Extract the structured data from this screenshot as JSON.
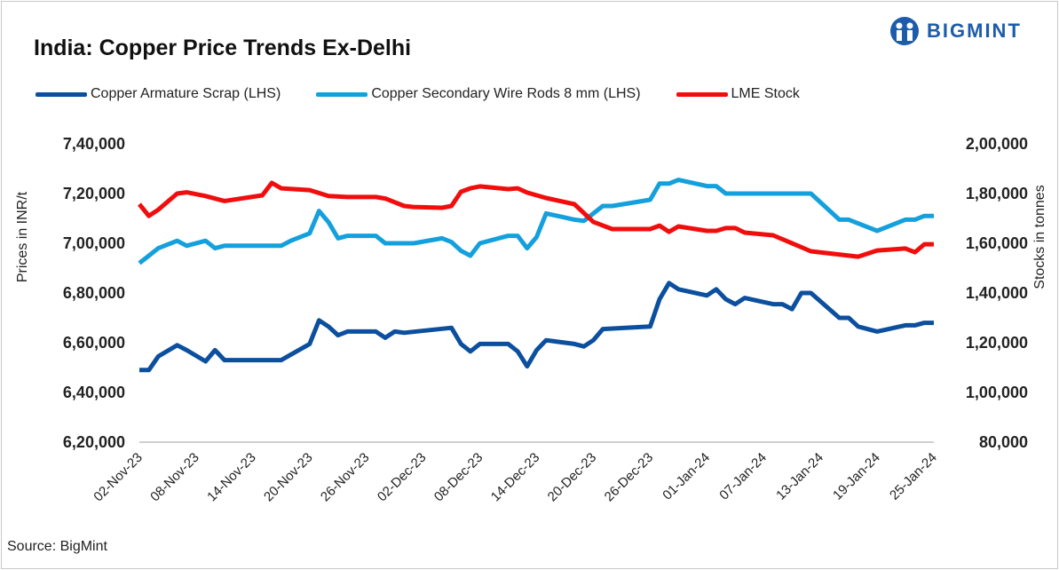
{
  "header": {
    "title": "India: Copper Price Trends Ex-Delhi",
    "logo_text": "BIGMINT"
  },
  "footer": {
    "source": "Source: BigMint"
  },
  "chart_data": {
    "type": "line",
    "title": "India: Copper Price Trends Ex-Delhi",
    "ylabel": "Prices in INR/t",
    "y2label": "Stocks in tonnes",
    "ylim": [
      620000,
      740000
    ],
    "y2lim": [
      80000,
      200000
    ],
    "yticks": [
      "6,20,000",
      "6,40,000",
      "6,60,000",
      "6,80,000",
      "7,00,000",
      "7,20,000",
      "7,40,000"
    ],
    "y2ticks": [
      "80,000",
      "1,00,000",
      "1,20,000",
      "1,40,000",
      "1,60,000",
      "1,80,000",
      "2,00,000"
    ],
    "xlim": [
      "2023-11-02",
      "2024-01-25"
    ],
    "xticks": [
      "02-Nov-23",
      "08-Nov-23",
      "14-Nov-23",
      "20-Nov-23",
      "26-Nov-23",
      "02-Dec-23",
      "08-Dec-23",
      "14-Dec-23",
      "20-Dec-23",
      "26-Dec-23",
      "01-Jan-24",
      "07-Jan-24",
      "13-Jan-24",
      "19-Jan-24",
      "25-Jan-24"
    ],
    "grid": false,
    "legend": "top",
    "series": [
      {
        "name": "Copper Armature Scrap (LHS)",
        "axis": "left",
        "color": "#0b4f9e",
        "points": [
          [
            "2023-11-02",
            649000
          ],
          [
            "2023-11-03",
            649000
          ],
          [
            "2023-11-04",
            654500
          ],
          [
            "2023-11-06",
            659000
          ],
          [
            "2023-11-07",
            657000
          ],
          [
            "2023-11-09",
            652500
          ],
          [
            "2023-11-10",
            657000
          ],
          [
            "2023-11-11",
            653000
          ],
          [
            "2023-11-17",
            653000
          ],
          [
            "2023-11-20",
            659500
          ],
          [
            "2023-11-21",
            669000
          ],
          [
            "2023-11-22",
            666500
          ],
          [
            "2023-11-23",
            663000
          ],
          [
            "2023-11-24",
            664500
          ],
          [
            "2023-11-27",
            664500
          ],
          [
            "2023-11-28",
            662000
          ],
          [
            "2023-11-29",
            664500
          ],
          [
            "2023-11-30",
            664000
          ],
          [
            "2023-12-05",
            666000
          ],
          [
            "2023-12-06",
            659500
          ],
          [
            "2023-12-07",
            656500
          ],
          [
            "2023-12-08",
            659500
          ],
          [
            "2023-12-11",
            659500
          ],
          [
            "2023-12-12",
            656500
          ],
          [
            "2023-12-13",
            650500
          ],
          [
            "2023-12-14",
            657000
          ],
          [
            "2023-12-15",
            661000
          ],
          [
            "2023-12-18",
            659500
          ],
          [
            "2023-12-19",
            658500
          ],
          [
            "2023-12-20",
            661000
          ],
          [
            "2023-12-21",
            665500
          ],
          [
            "2023-12-26",
            666500
          ],
          [
            "2023-12-27",
            677500
          ],
          [
            "2023-12-28",
            684000
          ],
          [
            "2023-12-29",
            681500
          ],
          [
            "2024-01-01",
            679000
          ],
          [
            "2024-01-02",
            681500
          ],
          [
            "2024-01-03",
            677500
          ],
          [
            "2024-01-04",
            675500
          ],
          [
            "2024-01-05",
            678000
          ],
          [
            "2024-01-08",
            675500
          ],
          [
            "2024-01-09",
            675500
          ],
          [
            "2024-01-10",
            673500
          ],
          [
            "2024-01-11",
            680000
          ],
          [
            "2024-01-12",
            680000
          ],
          [
            "2024-01-15",
            670000
          ],
          [
            "2024-01-16",
            670000
          ],
          [
            "2024-01-17",
            666500
          ],
          [
            "2024-01-19",
            664500
          ],
          [
            "2024-01-22",
            667000
          ],
          [
            "2024-01-23",
            667000
          ],
          [
            "2024-01-24",
            668000
          ],
          [
            "2024-01-25",
            668000
          ]
        ]
      },
      {
        "name": "Copper Secondary Wire Rods 8 mm (LHS)",
        "axis": "left",
        "color": "#14a0dc",
        "points": [
          [
            "2023-11-02",
            692000
          ],
          [
            "2023-11-03",
            695000
          ],
          [
            "2023-11-04",
            698000
          ],
          [
            "2023-11-06",
            701000
          ],
          [
            "2023-11-07",
            699000
          ],
          [
            "2023-11-09",
            701000
          ],
          [
            "2023-11-10",
            698000
          ],
          [
            "2023-11-11",
            699000
          ],
          [
            "2023-11-17",
            699000
          ],
          [
            "2023-11-18",
            701000
          ],
          [
            "2023-11-20",
            704000
          ],
          [
            "2023-11-21",
            713000
          ],
          [
            "2023-11-22",
            708500
          ],
          [
            "2023-11-23",
            702000
          ],
          [
            "2023-11-24",
            703000
          ],
          [
            "2023-11-27",
            703000
          ],
          [
            "2023-11-28",
            700000
          ],
          [
            "2023-12-01",
            700000
          ],
          [
            "2023-12-04",
            702000
          ],
          [
            "2023-12-05",
            700500
          ],
          [
            "2023-12-06",
            697000
          ],
          [
            "2023-12-07",
            695000
          ],
          [
            "2023-12-08",
            700000
          ],
          [
            "2023-12-11",
            703000
          ],
          [
            "2023-12-12",
            703000
          ],
          [
            "2023-12-13",
            698000
          ],
          [
            "2023-12-14",
            702500
          ],
          [
            "2023-12-15",
            712000
          ],
          [
            "2023-12-18",
            709500
          ],
          [
            "2023-12-19",
            709000
          ],
          [
            "2023-12-21",
            715000
          ],
          [
            "2023-12-22",
            715000
          ],
          [
            "2023-12-26",
            717500
          ],
          [
            "2023-12-27",
            724000
          ],
          [
            "2023-12-28",
            724000
          ],
          [
            "2023-12-29",
            725500
          ],
          [
            "2024-01-01",
            723000
          ],
          [
            "2024-01-02",
            723000
          ],
          [
            "2024-01-03",
            720000
          ],
          [
            "2024-01-12",
            720000
          ],
          [
            "2024-01-15",
            709500
          ],
          [
            "2024-01-16",
            709500
          ],
          [
            "2024-01-19",
            705000
          ],
          [
            "2024-01-22",
            709500
          ],
          [
            "2024-01-23",
            709500
          ],
          [
            "2024-01-24",
            711000
          ],
          [
            "2024-01-25",
            711000
          ]
        ]
      },
      {
        "name": "LME Stock",
        "axis": "right",
        "color": "#f20d0d",
        "points": [
          [
            "2023-11-02",
            175700
          ],
          [
            "2023-11-03",
            171000
          ],
          [
            "2023-11-04",
            173500
          ],
          [
            "2023-11-06",
            180000
          ],
          [
            "2023-11-07",
            180500
          ],
          [
            "2023-11-09",
            179000
          ],
          [
            "2023-11-11",
            177000
          ],
          [
            "2023-11-15",
            179300
          ],
          [
            "2023-11-16",
            184300
          ],
          [
            "2023-11-17",
            182100
          ],
          [
            "2023-11-20",
            181400
          ],
          [
            "2023-11-22",
            179000
          ],
          [
            "2023-11-24",
            178600
          ],
          [
            "2023-11-27",
            178600
          ],
          [
            "2023-11-28",
            178000
          ],
          [
            "2023-11-30",
            175000
          ],
          [
            "2023-12-01",
            174600
          ],
          [
            "2023-12-04",
            174300
          ],
          [
            "2023-12-05",
            175000
          ],
          [
            "2023-12-06",
            180700
          ],
          [
            "2023-12-07",
            182100
          ],
          [
            "2023-12-08",
            182900
          ],
          [
            "2023-12-11",
            181800
          ],
          [
            "2023-12-12",
            182100
          ],
          [
            "2023-12-13",
            180400
          ],
          [
            "2023-12-15",
            178200
          ],
          [
            "2023-12-18",
            175700
          ],
          [
            "2023-12-20",
            168600
          ],
          [
            "2023-12-22",
            165700
          ],
          [
            "2023-12-26",
            165700
          ],
          [
            "2023-12-27",
            167100
          ],
          [
            "2023-12-28",
            164600
          ],
          [
            "2023-12-29",
            166800
          ],
          [
            "2024-01-01",
            165000
          ],
          [
            "2024-01-02",
            165000
          ],
          [
            "2024-01-03",
            166100
          ],
          [
            "2024-01-04",
            166100
          ],
          [
            "2024-01-05",
            164300
          ],
          [
            "2024-01-08",
            163200
          ],
          [
            "2024-01-12",
            156800
          ],
          [
            "2024-01-17",
            154600
          ],
          [
            "2024-01-19",
            157100
          ],
          [
            "2024-01-22",
            157900
          ],
          [
            "2024-01-23",
            156400
          ],
          [
            "2024-01-24",
            159600
          ],
          [
            "2024-01-25",
            159600
          ]
        ]
      }
    ]
  }
}
